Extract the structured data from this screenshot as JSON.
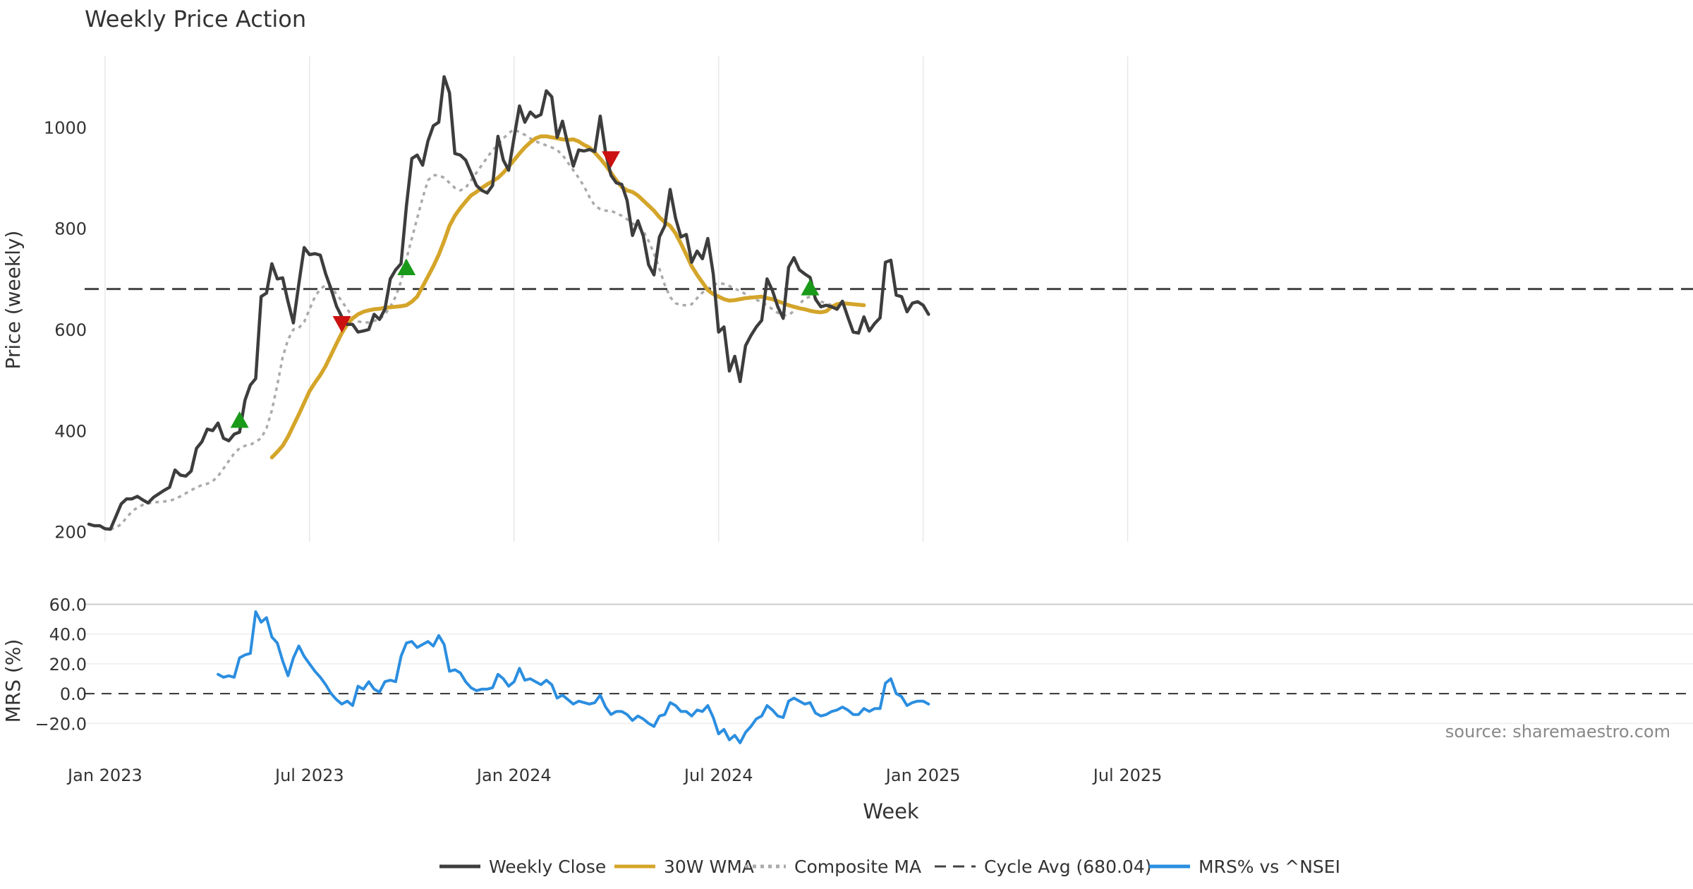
{
  "chart_data": {
    "type": "line",
    "title": "Weekly Price Action",
    "xlabel": "Week",
    "x_ticks": [
      "Jan 2023",
      "Jul 2023",
      "Jan 2024",
      "Jul 2024",
      "Jan 2025",
      "Jul 2025"
    ],
    "source": "source: sharemaestro.com",
    "colors": {
      "close": "#3d3d3d",
      "wma": "#d4a52a",
      "composite": "#aaaaaa",
      "cycle": "#444444",
      "mrs": "#2b8ee0",
      "buy": "#1a9a1a",
      "sell": "#cc1111"
    },
    "price_panel": {
      "ylabel": "Price (weekly)",
      "yticks": [
        "200",
        "400",
        "600",
        "800",
        "1000"
      ],
      "ylim": [
        180,
        1140
      ],
      "series": [
        {
          "name": "Weekly Close",
          "values": [
            215,
            212,
            212,
            206,
            205,
            230,
            255,
            265,
            265,
            270,
            263,
            257,
            268,
            275,
            282,
            288,
            322,
            312,
            310,
            320,
            365,
            378,
            403,
            400,
            415,
            385,
            380,
            393,
            397,
            460,
            490,
            503,
            665,
            672,
            730,
            700,
            702,
            655,
            613,
            690,
            762,
            748,
            750,
            747,
            710,
            680,
            646,
            625,
            610,
            610,
            595,
            597,
            600,
            630,
            620,
            640,
            700,
            718,
            730,
            845,
            938,
            945,
            925,
            973,
            1003,
            1010,
            1100,
            1068,
            948,
            945,
            935,
            910,
            885,
            875,
            870,
            885,
            982,
            935,
            915,
            980,
            1042,
            1010,
            1030,
            1020,
            1025,
            1072,
            1060,
            980,
            1012,
            965,
            923,
            955,
            953,
            956,
            952,
            1022,
            950,
            905,
            890,
            887,
            855,
            786,
            815,
            785,
            728,
            708,
            783,
            805,
            877,
            820,
            783,
            788,
            733,
            755,
            740,
            780,
            710,
            595,
            605,
            518,
            547,
            497,
            568,
            588,
            605,
            618,
            700,
            677,
            645,
            622,
            723,
            742,
            718,
            710,
            703,
            660,
            645,
            648,
            645,
            640,
            656,
            625,
            595,
            593,
            625,
            597,
            612,
            623,
            733,
            737,
            668,
            665,
            635,
            652,
            655,
            648,
            630
          ],
          "start_index": 0
        },
        {
          "name": "30W WMA",
          "values": [
            347,
            358,
            370,
            388,
            410,
            432,
            455,
            478,
            495,
            510,
            528,
            550,
            572,
            593,
            610,
            622,
            630,
            635,
            638,
            640,
            641,
            643,
            644,
            645,
            646,
            648,
            655,
            665,
            685,
            705,
            725,
            748,
            775,
            805,
            825,
            840,
            853,
            865,
            872,
            880,
            887,
            893,
            900,
            910,
            922,
            935,
            948,
            960,
            970,
            978,
            982,
            982,
            980,
            978,
            976,
            975,
            976,
            972,
            965,
            960,
            950,
            938,
            925,
            910,
            895,
            882,
            875,
            872,
            865,
            855,
            845,
            835,
            822,
            812,
            805,
            790,
            770,
            748,
            725,
            708,
            693,
            678,
            670,
            665,
            660,
            657,
            658,
            660,
            662,
            663,
            664,
            665,
            662,
            660,
            656,
            652,
            648,
            645,
            642,
            640,
            637,
            635,
            634,
            636,
            645,
            650,
            652,
            651,
            650,
            649,
            648
          ],
          "start_index": 34
        },
        {
          "name": "Composite MA",
          "values": [
            205,
            208,
            215,
            228,
            240,
            248,
            253,
            256,
            258,
            259,
            260,
            261,
            265,
            270,
            276,
            282,
            288,
            292,
            295,
            300,
            310,
            325,
            340,
            355,
            365,
            370,
            372,
            378,
            385,
            405,
            440,
            490,
            545,
            580,
            600,
            603,
            615,
            640,
            665,
            680,
            688,
            683,
            670,
            656,
            640,
            626,
            616,
            614,
            614,
            617,
            620,
            630,
            645,
            665,
            695,
            740,
            780,
            820,
            860,
            895,
            905,
            905,
            900,
            890,
            880,
            875,
            880,
            895,
            910,
            925,
            940,
            955,
            965,
            978,
            988,
            996,
            990,
            985,
            978,
            972,
            968,
            964,
            960,
            955,
            945,
            930,
            915,
            900,
            883,
            862,
            845,
            838,
            835,
            835,
            830,
            825,
            818,
            810,
            803,
            795,
            775,
            750,
            720,
            688,
            664,
            652,
            648,
            648,
            650,
            662,
            673,
            680,
            688,
            692,
            690,
            686,
            681,
            676,
            670,
            664,
            659,
            654,
            648,
            640,
            633,
            628,
            628,
            637,
            650,
            661,
            665,
            662,
            655,
            652,
            648,
            645
          ],
          "start_index": 4
        },
        {
          "name": "Cycle Avg (680.04)",
          "value": 680.04
        }
      ],
      "markers": [
        {
          "type": "buy",
          "index": 28,
          "value": 420
        },
        {
          "type": "sell",
          "index": 47,
          "value": 612
        },
        {
          "type": "buy",
          "index": 59,
          "value": 722
        },
        {
          "type": "sell",
          "index": 97,
          "value": 938
        },
        {
          "type": "buy",
          "index": 134,
          "value": 682
        }
      ]
    },
    "mrs_panel": {
      "ylabel": "MRS (%)",
      "yticks": [
        "60.0",
        "40.0",
        "20.0",
        "0.0",
        "−20.0"
      ],
      "ylim": [
        -26,
        64
      ],
      "series": [
        {
          "name": "MRS% vs ^NSEI",
          "start_index": 24,
          "values": [
            13,
            11,
            12,
            11,
            24,
            26,
            27,
            55,
            48,
            51,
            38,
            34,
            22,
            12,
            24,
            32,
            25,
            20,
            15,
            11,
            6,
            0,
            -4,
            -7,
            -5,
            -8,
            5,
            3,
            8,
            3,
            1,
            8,
            9,
            8,
            25,
            34,
            35,
            31,
            33,
            35,
            32,
            39,
            33,
            15,
            16,
            14,
            8,
            4,
            2,
            3,
            3,
            4,
            13,
            10,
            5,
            8,
            17,
            9,
            10,
            8,
            6,
            9,
            6,
            -3,
            -1,
            -4,
            -7,
            -5,
            -6,
            -7,
            -6,
            -1,
            -9,
            -14,
            -12,
            -12,
            -14,
            -18,
            -15,
            -17,
            -20,
            -22,
            -15,
            -14,
            -6,
            -8,
            -12,
            -12,
            -15,
            -11,
            -12,
            -8,
            -16,
            -27,
            -24,
            -31,
            -28,
            -33,
            -26,
            -22,
            -17,
            -15,
            -8,
            -11,
            -15,
            -16,
            -5,
            -3,
            -5,
            -7,
            -6,
            -13,
            -15,
            -14,
            -12,
            -11,
            -9,
            -11,
            -14,
            -14,
            -10,
            -12,
            -10,
            -10,
            7,
            10,
            0,
            -2,
            -8,
            -6,
            -5,
            -5,
            -7
          ]
        }
      ]
    },
    "legend": [
      {
        "label": "Weekly Close",
        "style": "solid",
        "color": "#3d3d3d"
      },
      {
        "label": "30W WMA",
        "style": "solid",
        "color": "#d4a52a"
      },
      {
        "label": "Composite MA",
        "style": "dotted",
        "color": "#aaaaaa"
      },
      {
        "label": "Cycle Avg (680.04)",
        "style": "dashed",
        "color": "#444444"
      },
      {
        "label": "MRS% vs ^NSEI",
        "style": "solid",
        "color": "#2b8ee0"
      }
    ]
  }
}
